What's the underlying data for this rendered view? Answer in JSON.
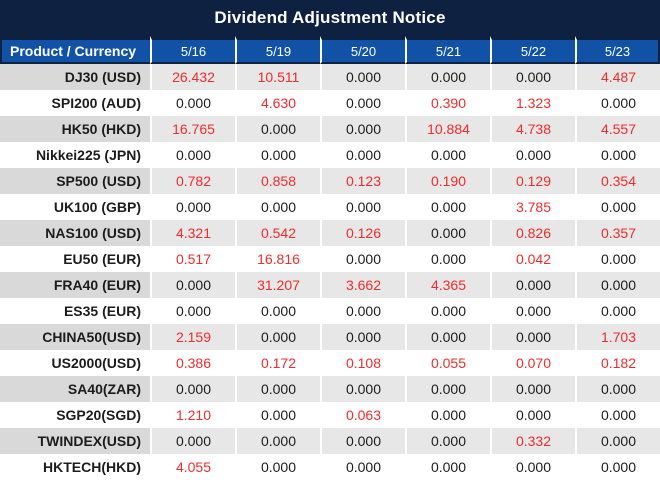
{
  "title": "Dividend Adjustment Notice",
  "table": {
    "product_column_header": "Product / Currency",
    "date_columns": [
      "5/16",
      "5/19",
      "5/20",
      "5/21",
      "5/22",
      "5/23"
    ],
    "rows": [
      {
        "product": "DJ30 (USD)",
        "values": [
          {
            "text": "26.432",
            "red": true
          },
          {
            "text": "10.511",
            "red": true
          },
          {
            "text": "0.000",
            "red": false
          },
          {
            "text": "0.000",
            "red": false
          },
          {
            "text": "0.000",
            "red": false
          },
          {
            "text": "4.487",
            "red": true
          }
        ]
      },
      {
        "product": "SPI200 (AUD)",
        "values": [
          {
            "text": "0.000",
            "red": false
          },
          {
            "text": "4.630",
            "red": true
          },
          {
            "text": "0.000",
            "red": false
          },
          {
            "text": "0.390",
            "red": true
          },
          {
            "text": "1.323",
            "red": true
          },
          {
            "text": "0.000",
            "red": false
          }
        ]
      },
      {
        "product": "HK50 (HKD)",
        "values": [
          {
            "text": "16.765",
            "red": true
          },
          {
            "text": "0.000",
            "red": false
          },
          {
            "text": "0.000",
            "red": false
          },
          {
            "text": "10.884",
            "red": true
          },
          {
            "text": "4.738",
            "red": true
          },
          {
            "text": "4.557",
            "red": true
          }
        ]
      },
      {
        "product": "Nikkei225 (JPN)",
        "values": [
          {
            "text": "0.000",
            "red": false
          },
          {
            "text": "0.000",
            "red": false
          },
          {
            "text": "0.000",
            "red": false
          },
          {
            "text": "0.000",
            "red": false
          },
          {
            "text": "0.000",
            "red": false
          },
          {
            "text": "0.000",
            "red": false
          }
        ]
      },
      {
        "product": "SP500 (USD)",
        "values": [
          {
            "text": "0.782",
            "red": true
          },
          {
            "text": "0.858",
            "red": true
          },
          {
            "text": "0.123",
            "red": true
          },
          {
            "text": "0.190",
            "red": true
          },
          {
            "text": "0.129",
            "red": true
          },
          {
            "text": "0.354",
            "red": true
          }
        ]
      },
      {
        "product": "UK100 (GBP)",
        "values": [
          {
            "text": "0.000",
            "red": false
          },
          {
            "text": "0.000",
            "red": false
          },
          {
            "text": "0.000",
            "red": false
          },
          {
            "text": "0.000",
            "red": false
          },
          {
            "text": "3.785",
            "red": true
          },
          {
            "text": "0.000",
            "red": false
          }
        ]
      },
      {
        "product": "NAS100 (USD)",
        "values": [
          {
            "text": "4.321",
            "red": true
          },
          {
            "text": "0.542",
            "red": true
          },
          {
            "text": "0.126",
            "red": true
          },
          {
            "text": "0.000",
            "red": false
          },
          {
            "text": "0.826",
            "red": true
          },
          {
            "text": "0.357",
            "red": true
          }
        ]
      },
      {
        "product": "EU50 (EUR)",
        "values": [
          {
            "text": "0.517",
            "red": true
          },
          {
            "text": "16.816",
            "red": true
          },
          {
            "text": "0.000",
            "red": false
          },
          {
            "text": "0.000",
            "red": false
          },
          {
            "text": "0.042",
            "red": true
          },
          {
            "text": "0.000",
            "red": false
          }
        ]
      },
      {
        "product": "FRA40 (EUR)",
        "values": [
          {
            "text": "0.000",
            "red": false
          },
          {
            "text": "31.207",
            "red": true
          },
          {
            "text": "3.662",
            "red": true
          },
          {
            "text": "4.365",
            "red": true
          },
          {
            "text": "0.000",
            "red": false
          },
          {
            "text": "0.000",
            "red": false
          }
        ]
      },
      {
        "product": "ES35 (EUR)",
        "values": [
          {
            "text": "0.000",
            "red": false
          },
          {
            "text": "0.000",
            "red": false
          },
          {
            "text": "0.000",
            "red": false
          },
          {
            "text": "0.000",
            "red": false
          },
          {
            "text": "0.000",
            "red": false
          },
          {
            "text": "0.000",
            "red": false
          }
        ]
      },
      {
        "product": "CHINA50(USD)",
        "values": [
          {
            "text": "2.159",
            "red": true
          },
          {
            "text": "0.000",
            "red": false
          },
          {
            "text": "0.000",
            "red": false
          },
          {
            "text": "0.000",
            "red": false
          },
          {
            "text": "0.000",
            "red": false
          },
          {
            "text": "1.703",
            "red": true
          }
        ]
      },
      {
        "product": "US2000(USD)",
        "values": [
          {
            "text": "0.386",
            "red": true
          },
          {
            "text": "0.172",
            "red": true
          },
          {
            "text": "0.108",
            "red": true
          },
          {
            "text": "0.055",
            "red": true
          },
          {
            "text": "0.070",
            "red": true
          },
          {
            "text": "0.182",
            "red": true
          }
        ]
      },
      {
        "product": "SA40(ZAR)",
        "values": [
          {
            "text": "0.000",
            "red": false
          },
          {
            "text": "0.000",
            "red": false
          },
          {
            "text": "0.000",
            "red": false
          },
          {
            "text": "0.000",
            "red": false
          },
          {
            "text": "0.000",
            "red": false
          },
          {
            "text": "0.000",
            "red": false
          }
        ]
      },
      {
        "product": "SGP20(SGD)",
        "values": [
          {
            "text": "1.210",
            "red": true
          },
          {
            "text": "0.000",
            "red": false
          },
          {
            "text": "0.063",
            "red": true
          },
          {
            "text": "0.000",
            "red": false
          },
          {
            "text": "0.000",
            "red": false
          },
          {
            "text": "0.000",
            "red": false
          }
        ]
      },
      {
        "product": "TWINDEX(USD)",
        "values": [
          {
            "text": "0.000",
            "red": false
          },
          {
            "text": "0.000",
            "red": false
          },
          {
            "text": "0.000",
            "red": false
          },
          {
            "text": "0.000",
            "red": false
          },
          {
            "text": "0.332",
            "red": true
          },
          {
            "text": "0.000",
            "red": false
          }
        ]
      },
      {
        "product": "HKTECH(HKD)",
        "values": [
          {
            "text": "4.055",
            "red": true
          },
          {
            "text": "0.000",
            "red": false
          },
          {
            "text": "0.000",
            "red": false
          },
          {
            "text": "0.000",
            "red": false
          },
          {
            "text": "0.000",
            "red": false
          },
          {
            "text": "0.000",
            "red": false
          }
        ]
      }
    ]
  },
  "colors": {
    "navy": "#0e2141",
    "header_blue": "#1152a7",
    "row_gray": "#e7e7e7",
    "product_gray": "#d9d9d9",
    "value_red": "#f32b2b",
    "value_black": "#1c1c1c"
  }
}
